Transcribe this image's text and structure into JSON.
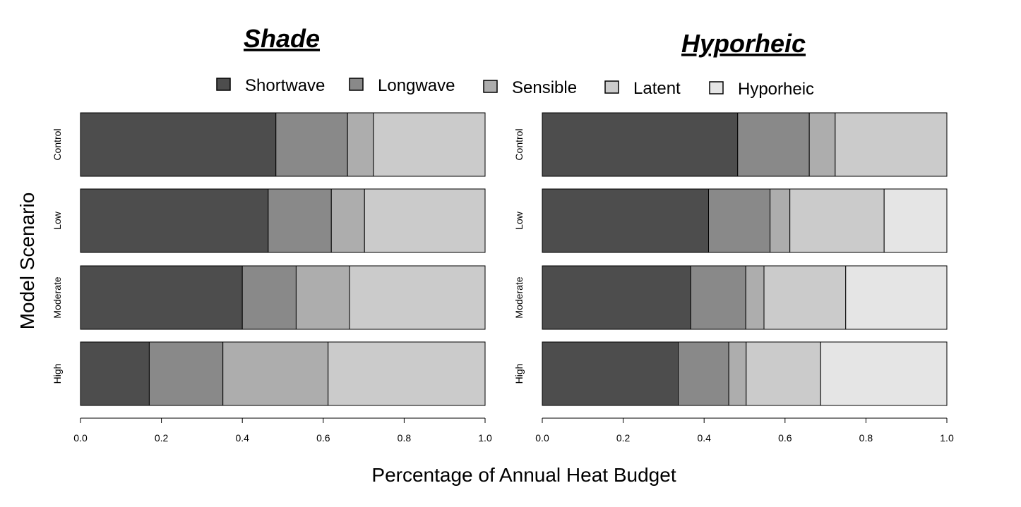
{
  "chart_data": {
    "type": "bar",
    "orientation": "horizontal",
    "stacked": true,
    "xlabel": "Percentage of Annual Heat Budget",
    "ylabel": "Model Scenario",
    "xlim": [
      0,
      1
    ],
    "xticks": [
      "0.0",
      "0.2",
      "0.4",
      "0.6",
      "0.8",
      "1.0"
    ],
    "legend": {
      "placement": "top-center",
      "entries": [
        {
          "name": "Shortwave",
          "color": "#4d4d4d"
        },
        {
          "name": "Longwave",
          "color": "#898989"
        },
        {
          "name": "Sensible",
          "color": "#adadad"
        },
        {
          "name": "Latent",
          "color": "#cbcbcb"
        },
        {
          "name": "Hyporheic",
          "color": "#e5e5e5"
        }
      ]
    },
    "panels": [
      {
        "title": "Shade",
        "categories": [
          "Control",
          "Low",
          "Moderate",
          "High"
        ],
        "series": [
          {
            "name": "Shortwave",
            "values": [
              0.483,
              0.464,
              0.4,
              0.17
            ]
          },
          {
            "name": "Longwave",
            "values": [
              0.177,
              0.156,
              0.133,
              0.182
            ]
          },
          {
            "name": "Sensible",
            "values": [
              0.064,
              0.082,
              0.132,
              0.26
            ]
          },
          {
            "name": "Latent",
            "values": [
              0.276,
              0.298,
              0.335,
              0.388
            ]
          },
          {
            "name": "Hyporheic",
            "values": [
              0,
              0,
              0,
              0
            ]
          }
        ]
      },
      {
        "title": "Hyporheic",
        "categories": [
          "Control",
          "Low",
          "Moderate",
          "High"
        ],
        "series": [
          {
            "name": "Shortwave",
            "values": [
              0.483,
              0.411,
              0.367,
              0.336
            ]
          },
          {
            "name": "Longwave",
            "values": [
              0.177,
              0.152,
              0.136,
              0.125
            ]
          },
          {
            "name": "Sensible",
            "values": [
              0.064,
              0.049,
              0.045,
              0.043
            ]
          },
          {
            "name": "Latent",
            "values": [
              0.276,
              0.233,
              0.202,
              0.184
            ]
          },
          {
            "name": "Hyporheic",
            "values": [
              0,
              0.155,
              0.25,
              0.312
            ]
          }
        ]
      }
    ]
  }
}
